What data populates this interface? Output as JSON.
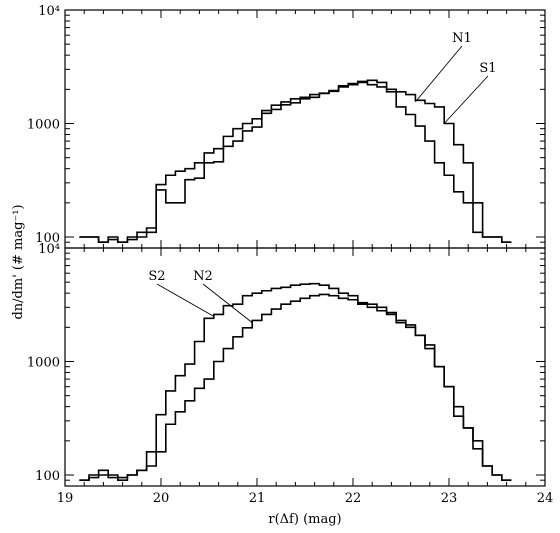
{
  "chart_data": [
    {
      "type": "line",
      "panel": "top",
      "ylabel": "dn/dm' (# mag⁻¹)",
      "xlabel": "",
      "xlim": [
        19,
        24
      ],
      "ylim": [
        80,
        10000
      ],
      "yscale": "log",
      "ytick_labels": [
        "10⁴",
        "1000",
        "100"
      ],
      "ytick_values": [
        10000,
        1000,
        100
      ],
      "grid": false,
      "series": [
        {
          "name": "S1",
          "x": [
            19.2,
            19.3,
            19.4,
            19.5,
            19.6,
            19.7,
            19.8,
            19.9,
            20.0,
            20.1,
            20.2,
            20.3,
            20.4,
            20.5,
            20.6,
            20.7,
            20.8,
            20.9,
            21.0,
            21.1,
            21.2,
            21.3,
            21.4,
            21.5,
            21.6,
            21.7,
            21.8,
            21.9,
            22.0,
            22.1,
            22.2,
            22.3,
            22.4,
            22.5,
            22.6,
            22.7,
            22.8,
            22.9,
            23.0,
            23.1,
            23.2,
            23.3,
            23.4,
            23.5,
            23.6
          ],
          "y": [
            100,
            100,
            90,
            100,
            90,
            100,
            110,
            120,
            260,
            200,
            200,
            320,
            330,
            450,
            460,
            630,
            700,
            860,
            930,
            1230,
            1330,
            1460,
            1520,
            1650,
            1700,
            1840,
            1920,
            2100,
            2200,
            2300,
            2400,
            2300,
            2000,
            1900,
            1800,
            1600,
            1500,
            1400,
            1000,
            650,
            450,
            200,
            100,
            100,
            90
          ]
        },
        {
          "name": "N1",
          "x": [
            19.2,
            19.3,
            19.4,
            19.5,
            19.6,
            19.7,
            19.8,
            19.9,
            20.0,
            20.1,
            20.2,
            20.3,
            20.4,
            20.5,
            20.6,
            20.7,
            20.8,
            20.9,
            21.0,
            21.1,
            21.2,
            21.3,
            21.4,
            21.5,
            21.6,
            21.7,
            21.8,
            21.9,
            22.0,
            22.1,
            22.2,
            22.3,
            22.4,
            22.5,
            22.6,
            22.7,
            22.8,
            22.9,
            23.0,
            23.1,
            23.2,
            23.3,
            23.4,
            23.5,
            23.6
          ],
          "y": [
            100,
            100,
            90,
            95,
            90,
            95,
            100,
            110,
            290,
            350,
            380,
            400,
            450,
            550,
            600,
            770,
            900,
            1000,
            1100,
            1300,
            1450,
            1550,
            1650,
            1700,
            1800,
            1850,
            1950,
            2150,
            2250,
            2350,
            2200,
            2100,
            1900,
            1400,
            1200,
            950,
            700,
            450,
            350,
            250,
            200,
            110,
            100,
            100,
            90
          ]
        }
      ],
      "annotations": [
        "N1",
        "S1"
      ]
    },
    {
      "type": "line",
      "panel": "bottom",
      "ylabel": "",
      "xlabel": "r(Δf) (mag)",
      "xlim": [
        19,
        24
      ],
      "ylim": [
        80,
        10000
      ],
      "yscale": "log",
      "xtick_labels": [
        "19",
        "20",
        "21",
        "22",
        "23",
        "24"
      ],
      "xtick_values": [
        19,
        20,
        21,
        22,
        23,
        24
      ],
      "ytick_labels": [
        "10⁴",
        "1000",
        "100"
      ],
      "ytick_values": [
        10000,
        1000,
        100
      ],
      "grid": false,
      "series": [
        {
          "name": "S2",
          "x": [
            19.2,
            19.3,
            19.4,
            19.5,
            19.6,
            19.7,
            19.8,
            19.9,
            20.0,
            20.1,
            20.2,
            20.3,
            20.4,
            20.5,
            20.6,
            20.7,
            20.8,
            20.9,
            21.0,
            21.1,
            21.2,
            21.3,
            21.4,
            21.5,
            21.6,
            21.7,
            21.8,
            21.9,
            22.0,
            22.1,
            22.2,
            22.3,
            22.4,
            22.5,
            22.6,
            22.7,
            22.8,
            22.9,
            23.0,
            23.1,
            23.2,
            23.3,
            23.4,
            23.5,
            23.6
          ],
          "y": [
            90,
            100,
            110,
            100,
            95,
            100,
            110,
            160,
            340,
            550,
            750,
            950,
            1500,
            2400,
            2600,
            3100,
            3200,
            3800,
            4000,
            4200,
            4400,
            4500,
            4700,
            4800,
            4850,
            4700,
            4400,
            4000,
            3800,
            3300,
            3200,
            3000,
            2700,
            2200,
            2100,
            1700,
            1400,
            900,
            600,
            330,
            260,
            200,
            120,
            100,
            90
          ]
        },
        {
          "name": "N2",
          "x": [
            19.2,
            19.3,
            19.4,
            19.5,
            19.6,
            19.7,
            19.8,
            19.9,
            20.0,
            20.1,
            20.2,
            20.3,
            20.4,
            20.5,
            20.6,
            20.7,
            20.8,
            20.9,
            21.0,
            21.1,
            21.2,
            21.3,
            21.4,
            21.5,
            21.6,
            21.7,
            21.8,
            21.9,
            22.0,
            22.1,
            22.2,
            22.3,
            22.4,
            22.5,
            22.6,
            22.7,
            22.8,
            22.9,
            23.0,
            23.1,
            23.2,
            23.3,
            23.4,
            23.5,
            23.6
          ],
          "y": [
            90,
            95,
            100,
            95,
            90,
            100,
            110,
            120,
            160,
            280,
            360,
            450,
            580,
            700,
            1000,
            1300,
            1650,
            1980,
            2300,
            2600,
            2900,
            3200,
            3400,
            3600,
            3800,
            3900,
            3800,
            3600,
            3500,
            3200,
            3000,
            2800,
            2600,
            2300,
            2000,
            1700,
            1300,
            900,
            600,
            400,
            260,
            170,
            120,
            100,
            90
          ]
        }
      ],
      "annotations": [
        "S2",
        "N2"
      ]
    }
  ]
}
